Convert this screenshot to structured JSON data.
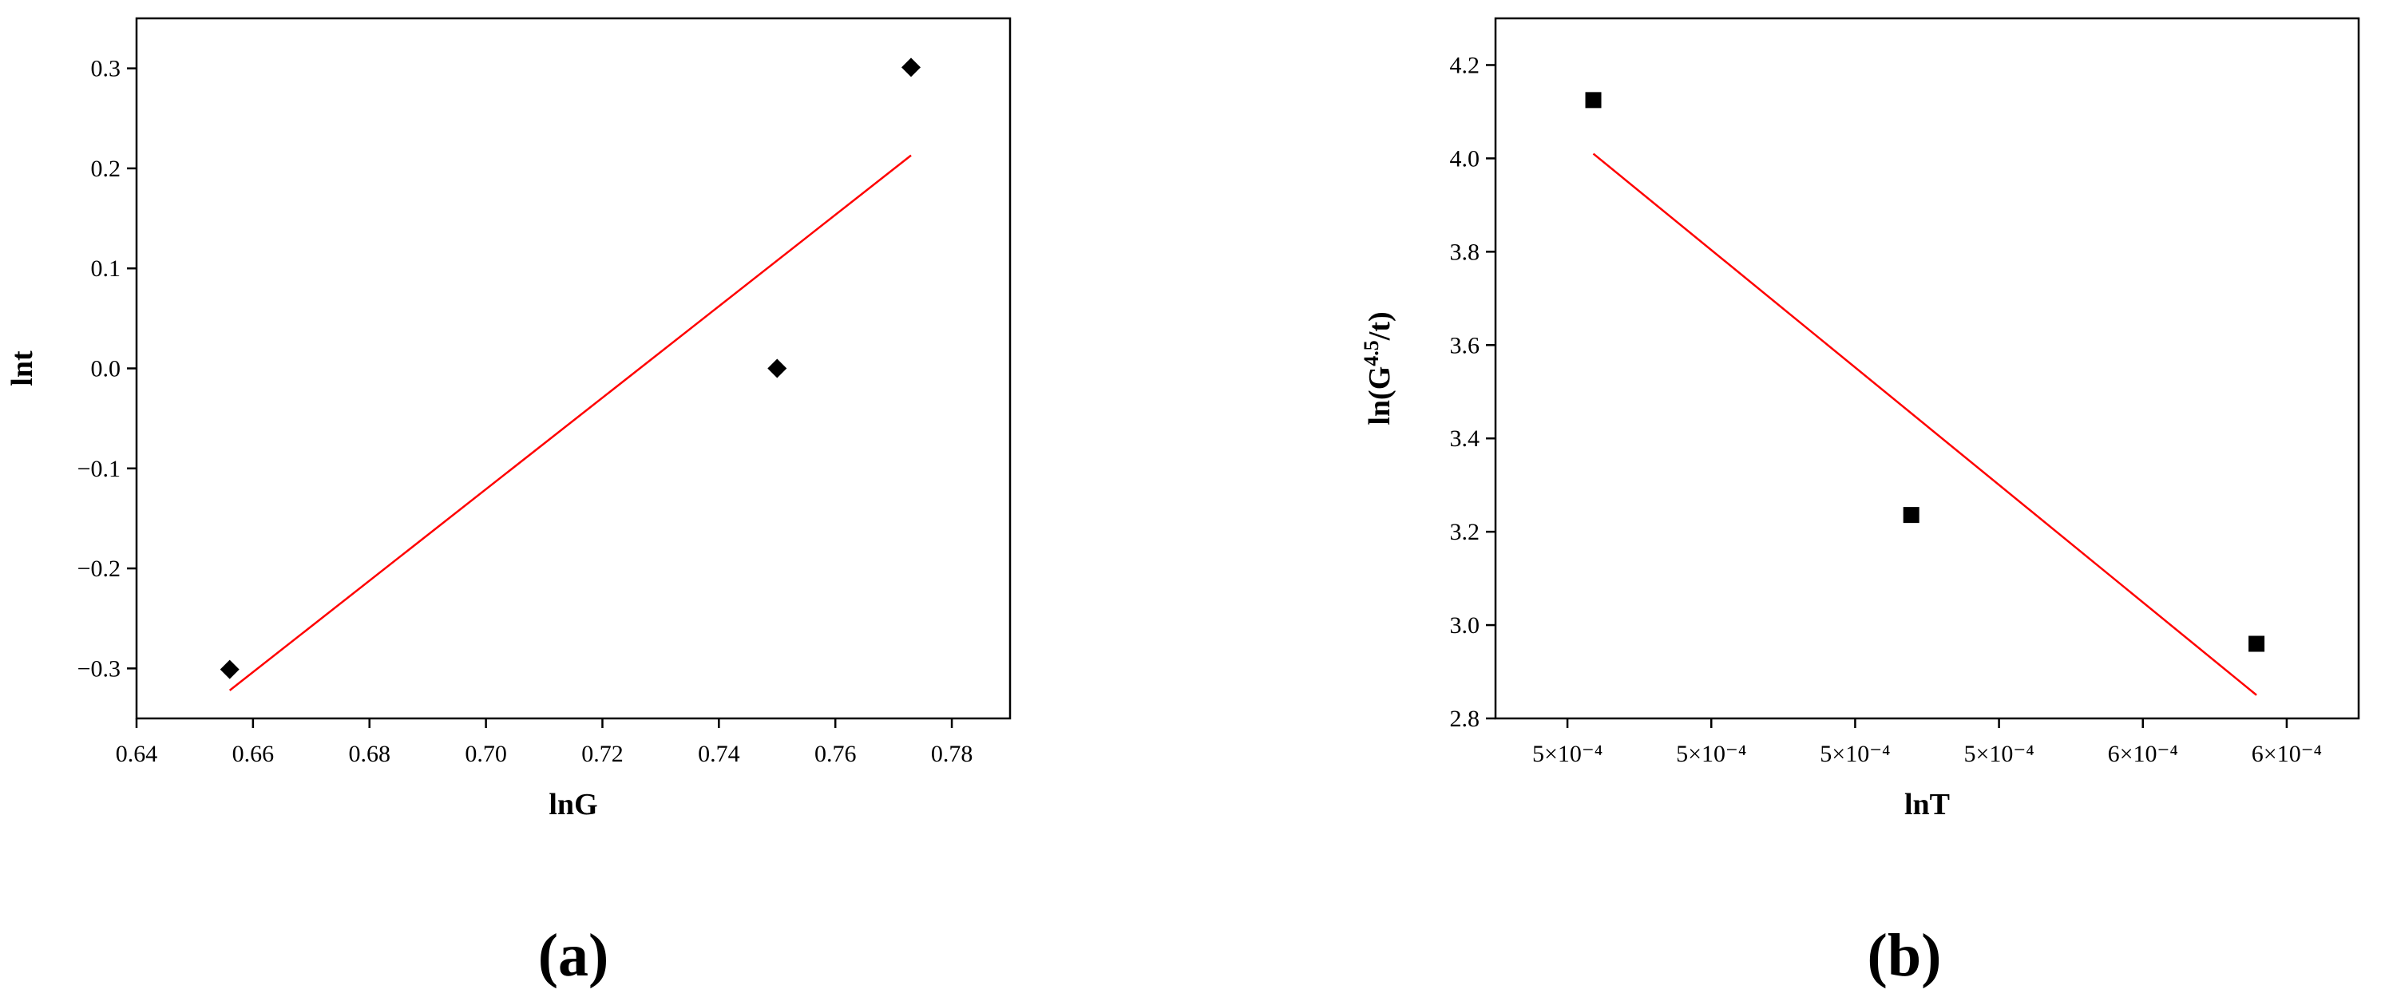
{
  "chart_data": [
    {
      "type": "scatter",
      "label": "(a)",
      "x_label": "lnG",
      "y_label": {
        "base": "lnt"
      },
      "xlim": [
        0.64,
        0.79
      ],
      "ylim": [
        -0.35,
        0.35
      ],
      "xticks": [
        0.64,
        0.66,
        0.68,
        {
          "value": 0.7,
          "label": "0.70"
        },
        0.72,
        0.74,
        0.76,
        0.78
      ],
      "yticks": [
        {
          "value": -0.3,
          "label": "−0.3"
        },
        {
          "value": -0.2,
          "label": "−0.2"
        },
        {
          "value": -0.1,
          "label": "−0.1"
        },
        {
          "value": 0,
          "label": "0.0"
        },
        0.1,
        0.2,
        0.3
      ],
      "series": [
        {
          "type": "scatter",
          "marker": "diamond",
          "color": "#000000",
          "x": [
            0.656,
            0.75,
            0.773
          ],
          "values": [
            -0.301,
            0.0,
            0.301
          ]
        },
        {
          "type": "line",
          "color": "#ff0000",
          "x": [
            0.656,
            0.773
          ],
          "values": [
            -0.322,
            0.213
          ]
        }
      ]
    },
    {
      "type": "scatter",
      "label": "(b)",
      "x_label": "lnT",
      "y_label": {
        "base": "ln(G",
        "sup": "4.5",
        "tail": "/t)"
      },
      "xlim": [
        0.00047,
        0.00059
      ],
      "ylim": [
        2.8,
        4.3
      ],
      "xticks": [
        {
          "value": 0.00048,
          "label": "5×10⁻⁴"
        },
        {
          "value": 0.0005,
          "label": "5×10⁻⁴"
        },
        {
          "value": 0.00052,
          "label": "5×10⁻⁴"
        },
        {
          "value": 0.00054,
          "label": "5×10⁻⁴"
        },
        {
          "value": 0.00056,
          "label": "6×10⁻⁴"
        },
        {
          "value": 0.00058,
          "label": "6×10⁻⁴"
        }
      ],
      "yticks": [
        2.8,
        {
          "value": 3,
          "label": "3.0"
        },
        3.2,
        3.4,
        3.6,
        3.8,
        {
          "value": 4,
          "label": "4.0"
        },
        4.2
      ],
      "series": [
        {
          "type": "scatter",
          "marker": "square",
          "color": "#000000",
          "x": [
            0.0004836,
            0.0005278,
            0.0005758
          ],
          "values": [
            4.125,
            3.236,
            2.96
          ]
        },
        {
          "type": "line",
          "color": "#ff0000",
          "x": [
            0.0004836,
            0.0005758
          ],
          "values": [
            4.01,
            2.85
          ]
        }
      ]
    }
  ]
}
